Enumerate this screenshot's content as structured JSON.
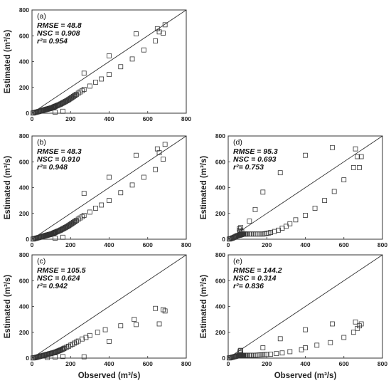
{
  "chart_data": [
    {
      "panel": "(a)",
      "type": "scatter",
      "xlim": [
        0,
        800
      ],
      "ylim": [
        0,
        800
      ],
      "xticks": [
        0,
        200,
        400,
        600,
        800
      ],
      "yticks": [
        0,
        200,
        400,
        600,
        800
      ],
      "xlabel": "",
      "ylabel": "Estimated (m³/s)",
      "reference_line": "1:1",
      "stats": [
        "RMSE = 48.8",
        "NSC = 0.908",
        "r²= 0.954"
      ],
      "x": [
        5,
        10,
        15,
        20,
        25,
        30,
        35,
        40,
        45,
        50,
        55,
        60,
        62,
        65,
        68,
        70,
        72,
        75,
        78,
        80,
        82,
        85,
        88,
        90,
        92,
        95,
        98,
        100,
        102,
        105,
        108,
        110,
        112,
        115,
        118,
        120,
        125,
        130,
        135,
        140,
        145,
        150,
        155,
        160,
        165,
        170,
        175,
        180,
        185,
        190,
        195,
        200,
        205,
        210,
        215,
        220,
        225,
        230,
        240,
        250,
        260,
        270,
        300,
        330,
        360,
        400,
        460,
        520,
        580,
        640,
        680,
        270,
        400,
        540,
        650,
        690,
        660,
        120,
        160
      ],
      "y": [
        1,
        3,
        5,
        7,
        9,
        11,
        13,
        15,
        17,
        20,
        22,
        24,
        25,
        26,
        27,
        28,
        29,
        30,
        31,
        32,
        33,
        34,
        35,
        36,
        37,
        38,
        39,
        40,
        41,
        42,
        43,
        45,
        47,
        49,
        51,
        53,
        56,
        59,
        62,
        65,
        68,
        72,
        76,
        80,
        84,
        88,
        92,
        96,
        100,
        105,
        110,
        115,
        120,
        125,
        130,
        135,
        140,
        145,
        155,
        165,
        175,
        185,
        210,
        240,
        265,
        300,
        360,
        420,
        490,
        560,
        620,
        310,
        445,
        615,
        655,
        685,
        630,
        8,
        15
      ]
    },
    {
      "panel": "(b)",
      "type": "scatter",
      "xlim": [
        0,
        800
      ],
      "ylim": [
        0,
        800
      ],
      "xticks": [
        0,
        200,
        400,
        600,
        800
      ],
      "yticks": [
        0,
        200,
        400,
        600,
        800
      ],
      "xlabel": "",
      "ylabel": "Estimated (m³/s)",
      "reference_line": "1:1",
      "stats": [
        "RMSE = 48.3",
        "NSC = 0.910",
        "r²= 0.948"
      ],
      "x": [
        5,
        10,
        15,
        20,
        25,
        30,
        35,
        40,
        45,
        50,
        55,
        60,
        62,
        65,
        68,
        70,
        72,
        75,
        78,
        80,
        82,
        85,
        88,
        90,
        92,
        95,
        98,
        100,
        102,
        105,
        108,
        110,
        112,
        115,
        118,
        120,
        125,
        130,
        135,
        140,
        145,
        150,
        155,
        160,
        165,
        170,
        175,
        180,
        185,
        190,
        195,
        200,
        205,
        210,
        215,
        220,
        225,
        230,
        240,
        250,
        260,
        270,
        300,
        330,
        360,
        400,
        460,
        520,
        580,
        640,
        680,
        270,
        400,
        540,
        650,
        690,
        660,
        120,
        160
      ],
      "y": [
        1,
        3,
        5,
        7,
        9,
        11,
        13,
        15,
        17,
        20,
        22,
        24,
        25,
        26,
        27,
        28,
        29,
        30,
        31,
        32,
        33,
        34,
        35,
        36,
        37,
        38,
        39,
        40,
        41,
        42,
        43,
        45,
        47,
        49,
        51,
        53,
        56,
        59,
        62,
        65,
        68,
        72,
        76,
        80,
        84,
        88,
        92,
        96,
        100,
        105,
        110,
        115,
        120,
        125,
        130,
        135,
        140,
        145,
        155,
        165,
        175,
        185,
        210,
        240,
        265,
        300,
        360,
        420,
        480,
        540,
        620,
        355,
        480,
        650,
        700,
        735,
        670,
        8,
        15
      ]
    },
    {
      "panel": "(c)",
      "type": "scatter",
      "xlim": [
        0,
        800
      ],
      "ylim": [
        0,
        800
      ],
      "xticks": [
        0,
        200,
        400,
        600,
        800
      ],
      "yticks": [
        0,
        200,
        400,
        600,
        800
      ],
      "xlabel": "Observed (m³/s)",
      "ylabel": "Estimated (m³/s)",
      "reference_line": "1:1",
      "stats": [
        "RMSE = 105.5",
        "NSC = 0.624",
        "r²= 0.942"
      ],
      "x": [
        5,
        10,
        15,
        20,
        25,
        30,
        35,
        40,
        45,
        50,
        55,
        60,
        65,
        70,
        75,
        80,
        85,
        90,
        95,
        100,
        105,
        110,
        115,
        120,
        125,
        130,
        135,
        140,
        145,
        150,
        155,
        160,
        165,
        170,
        180,
        190,
        200,
        210,
        220,
        230,
        240,
        260,
        280,
        300,
        340,
        380,
        400,
        460,
        530,
        540,
        640,
        660,
        680,
        690,
        270,
        80,
        120,
        160
      ],
      "y": [
        1,
        2,
        3,
        5,
        7,
        9,
        11,
        13,
        15,
        17,
        19,
        21,
        23,
        25,
        27,
        29,
        31,
        33,
        35,
        37,
        39,
        41,
        43,
        45,
        48,
        51,
        54,
        57,
        60,
        63,
        66,
        70,
        74,
        78,
        85,
        92,
        100,
        108,
        116,
        124,
        132,
        148,
        160,
        175,
        200,
        220,
        130,
        250,
        300,
        260,
        385,
        265,
        375,
        365,
        10,
        5,
        8,
        12
      ]
    },
    {
      "panel": "(d)",
      "type": "scatter",
      "xlim": [
        0,
        800
      ],
      "ylim": [
        0,
        800
      ],
      "xticks": [
        0,
        200,
        400,
        600,
        800
      ],
      "yticks": [
        0,
        200,
        400,
        600,
        800
      ],
      "xlabel": "",
      "ylabel": "Estimated (m³/s)",
      "reference_line": "1:1",
      "stats": [
        "RMSE = 95.3",
        "NSC = 0.693",
        "r²= 0.753"
      ],
      "x": [
        5,
        10,
        15,
        20,
        25,
        30,
        35,
        40,
        45,
        50,
        55,
        58,
        60,
        62,
        64,
        66,
        68,
        70,
        72,
        74,
        76,
        78,
        80,
        85,
        90,
        95,
        100,
        110,
        120,
        130,
        140,
        150,
        160,
        170,
        180,
        190,
        200,
        210,
        220,
        240,
        260,
        280,
        300,
        320,
        350,
        400,
        450,
        500,
        550,
        600,
        650,
        670,
        680,
        690,
        60,
        62,
        65,
        70,
        58,
        110,
        140,
        180,
        270,
        400,
        540,
        660
      ],
      "y": [
        1,
        3,
        5,
        8,
        11,
        14,
        18,
        22,
        26,
        28,
        30,
        31,
        32,
        33,
        34,
        35,
        36,
        37,
        38,
        39,
        40,
        40,
        40,
        40,
        40,
        40,
        40,
        40,
        40,
        40,
        40,
        40,
        40,
        40,
        40,
        42,
        45,
        48,
        52,
        60,
        70,
        85,
        100,
        120,
        150,
        185,
        240,
        300,
        370,
        460,
        555,
        640,
        555,
        640,
        50,
        70,
        90,
        60,
        80,
        140,
        230,
        365,
        515,
        650,
        710,
        700
      ]
    },
    {
      "panel": "(e)",
      "type": "scatter",
      "xlim": [
        0,
        800
      ],
      "ylim": [
        0,
        800
      ],
      "xticks": [
        0,
        200,
        400,
        600,
        800
      ],
      "yticks": [
        0,
        200,
        400,
        600,
        800
      ],
      "xlabel": "Observed (m³/s)",
      "ylabel": "Estimated (m³/s)",
      "reference_line": "1:1",
      "stats": [
        "RMSE = 144.2",
        "NSC = 0.314",
        "r²= 0.836"
      ],
      "x": [
        5,
        10,
        15,
        20,
        25,
        30,
        35,
        40,
        45,
        50,
        55,
        58,
        60,
        62,
        64,
        66,
        68,
        70,
        72,
        74,
        76,
        78,
        80,
        85,
        90,
        95,
        100,
        110,
        120,
        130,
        140,
        150,
        160,
        170,
        180,
        190,
        200,
        220,
        250,
        280,
        320,
        380,
        400,
        460,
        530,
        600,
        650,
        670,
        680,
        690,
        60,
        62,
        65,
        180,
        270,
        400,
        540,
        660
      ],
      "y": [
        1,
        2,
        4,
        6,
        8,
        10,
        12,
        14,
        16,
        18,
        19,
        20,
        20,
        21,
        21,
        22,
        22,
        22,
        22,
        22,
        22,
        22,
        22,
        22,
        22,
        22,
        22,
        22,
        22,
        22,
        22,
        23,
        24,
        25,
        26,
        27,
        28,
        30,
        35,
        40,
        50,
        65,
        80,
        100,
        120,
        160,
        200,
        230,
        250,
        265,
        40,
        55,
        60,
        80,
        150,
        220,
        265,
        280
      ]
    }
  ]
}
